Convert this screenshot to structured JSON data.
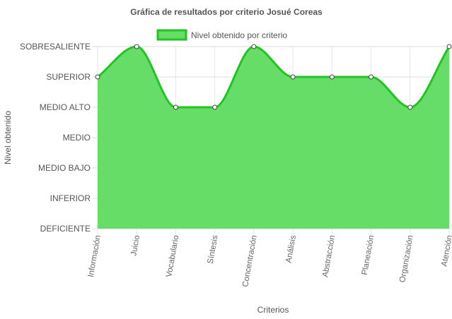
{
  "chart_data": {
    "type": "area",
    "title": "Gráfica de resultados por criterio Josué Coreas",
    "xlabel": "Criterios",
    "ylabel": "Nivel obtenido",
    "y_levels": [
      "DEFICIENTE",
      "INFERIOR",
      "MEDIO BAJO",
      "MEDIO",
      "MEDIO ALTO",
      "SUPERIOR",
      "SOBRESALIENTE"
    ],
    "ylim": [
      0,
      6
    ],
    "categories": [
      "Información",
      "Juicio",
      "Vocabulario",
      "Síntesis",
      "Concentración",
      "Análisis",
      "Abstracción",
      "Planeación",
      "Organización",
      "Atención"
    ],
    "series": [
      {
        "name": "Nivel obtenido por criterio",
        "values": [
          5,
          6,
          4,
          4,
          6,
          5,
          5,
          5,
          4,
          6
        ]
      }
    ],
    "legend_position": "top",
    "grid": true,
    "colors": {
      "fill": "#66dd66",
      "line": "#22c322",
      "grid": "#e3e3e3",
      "point_fill": "#ffffff",
      "point_stroke": "#444444"
    }
  }
}
